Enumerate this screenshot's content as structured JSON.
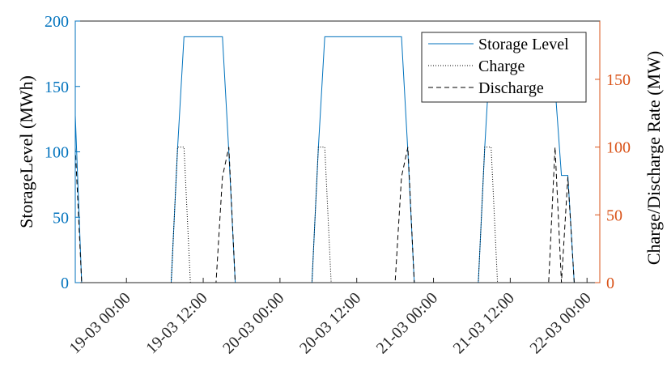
{
  "chart_data": {
    "type": "line",
    "title": "",
    "x_axis": {
      "type": "time",
      "range": [
        "2024-03-18T16:00",
        "2024-03-22T02:00"
      ],
      "ticks": [
        {
          "value": "2024-03-19T00:00",
          "label": "19-03 00:00"
        },
        {
          "value": "2024-03-19T12:00",
          "label": "19-03 12:00"
        },
        {
          "value": "2024-03-20T00:00",
          "label": "20-03 00:00"
        },
        {
          "value": "2024-03-20T12:00",
          "label": "20-03 12:00"
        },
        {
          "value": "2024-03-21T00:00",
          "label": "21-03 00:00"
        },
        {
          "value": "2024-03-21T12:00",
          "label": "21-03 12:00"
        },
        {
          "value": "2024-03-22T00:00",
          "label": "22-03 00:00"
        }
      ],
      "tick_label_rotation": "45°"
    },
    "y_axis_left": {
      "label": "StorageLevel (MWh)",
      "ylim": [
        0,
        200
      ],
      "ticks": [
        0,
        50,
        100,
        150,
        200
      ],
      "color": "#0072BD"
    },
    "y_axis_right": {
      "label": "Charge/Discharge Rate (MW)",
      "ylim": [
        0,
        193
      ],
      "ticks": [
        0,
        50,
        100,
        150
      ],
      "color": "#D95319"
    },
    "grid": false,
    "legend": {
      "placement": "top-right",
      "entries": [
        "Storage Level",
        "Charge",
        "Discharge"
      ]
    },
    "series": [
      {
        "name": "Storage Level",
        "axis": "left",
        "style": "solid",
        "color": "#0072BD",
        "points": [
          [
            "2024-03-18T16:00",
            128
          ],
          [
            "2024-03-18T17:00",
            0
          ],
          [
            "2024-03-19T07:00",
            0
          ],
          [
            "2024-03-19T08:00",
            103
          ],
          [
            "2024-03-19T09:00",
            188
          ],
          [
            "2024-03-19T15:00",
            188
          ],
          [
            "2024-03-19T16:00",
            100
          ],
          [
            "2024-03-19T17:00",
            0
          ],
          [
            "2024-03-20T05:00",
            0
          ],
          [
            "2024-03-20T06:00",
            103
          ],
          [
            "2024-03-20T07:00",
            188
          ],
          [
            "2024-03-20T19:00",
            188
          ],
          [
            "2024-03-20T20:00",
            100
          ],
          [
            "2024-03-20T21:00",
            0
          ],
          [
            "2024-03-21T07:00",
            0
          ],
          [
            "2024-03-21T08:00",
            103
          ],
          [
            "2024-03-21T09:00",
            188
          ],
          [
            "2024-03-21T18:00",
            188
          ],
          [
            "2024-03-21T19:00",
            150
          ],
          [
            "2024-03-21T20:00",
            82
          ],
          [
            "2024-03-21T21:00",
            82
          ],
          [
            "2024-03-21T22:00",
            0
          ],
          [
            "2024-03-22T02:00",
            0
          ]
        ]
      },
      {
        "name": "Charge",
        "axis": "right",
        "style": "dotted",
        "color": "#000000",
        "points": [
          [
            "2024-03-19T07:00",
            0
          ],
          [
            "2024-03-19T08:00",
            100
          ],
          [
            "2024-03-19T09:00",
            100
          ],
          [
            "2024-03-19T10:00",
            0
          ],
          [
            "2024-03-20T05:00",
            0
          ],
          [
            "2024-03-20T06:00",
            100
          ],
          [
            "2024-03-20T07:00",
            100
          ],
          [
            "2024-03-20T08:00",
            0
          ],
          [
            "2024-03-21T07:00",
            0
          ],
          [
            "2024-03-21T08:00",
            100
          ],
          [
            "2024-03-21T09:00",
            100
          ],
          [
            "2024-03-21T10:00",
            0
          ]
        ]
      },
      {
        "name": "Discharge",
        "axis": "right",
        "style": "dashed",
        "color": "#000000",
        "points": [
          [
            "2024-03-18T16:00",
            100
          ],
          [
            "2024-03-18T17:00",
            0
          ],
          [
            "2024-03-19T14:00",
            0
          ],
          [
            "2024-03-19T15:00",
            78
          ],
          [
            "2024-03-19T16:00",
            100
          ],
          [
            "2024-03-19T17:00",
            0
          ],
          [
            "2024-03-20T18:00",
            0
          ],
          [
            "2024-03-20T19:00",
            78
          ],
          [
            "2024-03-20T20:00",
            100
          ],
          [
            "2024-03-20T21:00",
            0
          ],
          [
            "2024-03-21T18:00",
            0
          ],
          [
            "2024-03-21T19:00",
            100
          ],
          [
            "2024-03-21T20:00",
            0
          ],
          [
            "2024-03-21T21:00",
            78
          ],
          [
            "2024-03-21T22:00",
            0
          ]
        ]
      }
    ]
  }
}
